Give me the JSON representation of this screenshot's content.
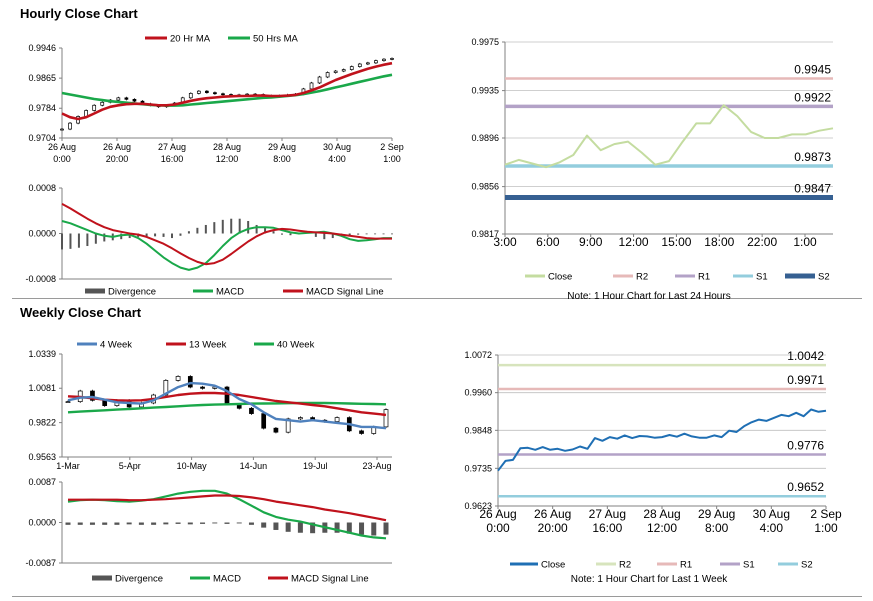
{
  "sections": {
    "hourly_title": "Hourly Close Chart",
    "weekly_title": "Weekly Close Chart"
  },
  "colors": {
    "ma_short": "#c0121c",
    "ma_long": "#1aa84a",
    "week4": "#4f81bd",
    "divergence": "#555555",
    "close_light": "#c4dca0",
    "close_blue": "#1f6fb4",
    "r2": "#e6b9b8",
    "r1": "#b3a2c7",
    "s1": "#93cddd",
    "s2": "#366092",
    "r2_weekly": "#d7e4bd"
  },
  "chart_data": [
    {
      "id": "hourly-price",
      "type": "candlestick",
      "legend": [
        "20 Hr MA",
        "50 Hrs MA"
      ],
      "y_ticks": [
        "0.9946",
        "0.9865",
        "0.9784",
        "0.9704"
      ],
      "ylim": [
        0.9704,
        0.9946
      ],
      "x_labels": [
        "26 Aug\n0:00",
        "26 Aug\n20:00",
        "27 Aug\n16:00",
        "28 Aug\n12:00",
        "29 Aug\n8:00",
        "30 Aug\n4:00",
        "2 Sep\n1:00"
      ],
      "close": [
        0.9728,
        0.9744,
        0.9762,
        0.9778,
        0.9792,
        0.98,
        0.9806,
        0.9812,
        0.9808,
        0.9803,
        0.9796,
        0.9792,
        0.9788,
        0.9792,
        0.9798,
        0.9812,
        0.9824,
        0.983,
        0.9826,
        0.9823,
        0.9821,
        0.9819,
        0.982,
        0.9822,
        0.9821,
        0.9818,
        0.9816,
        0.9818,
        0.982,
        0.9822,
        0.9836,
        0.9852,
        0.9868,
        0.988,
        0.9884,
        0.9888,
        0.9896,
        0.9903,
        0.9906,
        0.9912,
        0.9916,
        0.9918
      ],
      "ma20": [
        0.977,
        0.976,
        0.9755,
        0.976,
        0.977,
        0.978,
        0.9788,
        0.9792,
        0.9795,
        0.9796,
        0.9796,
        0.9794,
        0.9792,
        0.9792,
        0.9794,
        0.9799,
        0.9804,
        0.9808,
        0.9811,
        0.9813,
        0.9815,
        0.9816,
        0.9817,
        0.9817,
        0.9818,
        0.9818,
        0.9817,
        0.9817,
        0.9818,
        0.982,
        0.9825,
        0.9832,
        0.984,
        0.985,
        0.986,
        0.9868,
        0.9876,
        0.9883,
        0.989,
        0.9896,
        0.9901,
        0.9905
      ],
      "ma50": [
        0.9825,
        0.9821,
        0.9817,
        0.9813,
        0.9809,
        0.9806,
        0.9803,
        0.9801,
        0.9799,
        0.9797,
        0.9795,
        0.9793,
        0.9792,
        0.9791,
        0.9791,
        0.9792,
        0.9794,
        0.9796,
        0.9798,
        0.98,
        0.9802,
        0.9804,
        0.9806,
        0.9808,
        0.981,
        0.9812,
        0.9813,
        0.9815,
        0.9817,
        0.9819,
        0.9822,
        0.9826,
        0.983,
        0.9835,
        0.984,
        0.9845,
        0.985,
        0.9855,
        0.986,
        0.9865,
        0.987,
        0.9874
      ]
    },
    {
      "id": "hourly-macd",
      "type": "macd",
      "legend": [
        "Divergence",
        "MACD",
        "MACD Signal Line"
      ],
      "y_ticks": [
        "0.0008",
        "0.0000",
        "-0.0008"
      ],
      "ylim": [
        -0.0008,
        0.0008
      ],
      "divergence": [
        -0.00028,
        -0.00027,
        -0.00025,
        -0.00022,
        -0.00018,
        -0.00014,
        -0.00012,
        -0.0001,
        -8e-05,
        -6e-05,
        -5e-05,
        -5e-05,
        -6e-05,
        -8e-05,
        -4e-05,
        4e-05,
        0.0001,
        0.00015,
        0.0002,
        0.00024,
        0.00026,
        0.00026,
        0.00022,
        0.00015,
        0.0001,
        4e-05,
        -2e-05,
        -3e-05,
        -1e-05,
        3e-05,
        -6e-05,
        -0.0001,
        -8e-05,
        -5e-05,
        -3e-05,
        -2e-05,
        -1e-05,
        -1e-05,
        0.0,
        0.0
      ],
      "macd": [
        0.00022,
        0.00018,
        0.00012,
        6e-05,
        0.0,
        -4e-05,
        -6e-05,
        -3e-05,
        -2e-05,
        -8e-05,
        -0.00018,
        -0.0003,
        -0.00042,
        -0.00052,
        -0.0006,
        -0.00064,
        -0.0006,
        -0.00052,
        -0.00038,
        -0.00022,
        -8e-05,
        2e-05,
        8e-05,
        0.00011,
        0.00011,
        0.0001,
        6e-05,
        2e-05,
        0.0,
        1e-05,
        2e-05,
        3e-05,
        0.0,
        -4e-05,
        -0.0001,
        -0.00013,
        -0.00012,
        -0.0001,
        -8e-05,
        -8e-05
      ],
      "signal": [
        0.00052,
        0.00044,
        0.00035,
        0.00026,
        0.00018,
        0.00011,
        6e-05,
        3e-05,
        0.0,
        -2e-05,
        -6e-05,
        -0.00012,
        -0.00018,
        -0.00026,
        -0.00035,
        -0.00043,
        -0.0005,
        -0.00054,
        -0.00052,
        -0.00046,
        -0.00036,
        -0.00025,
        -0.00014,
        -5e-05,
        2e-05,
        6e-05,
        8e-05,
        7e-05,
        5e-05,
        3e-05,
        2e-05,
        1e-05,
        0.0,
        -2e-05,
        -4e-05,
        -6e-05,
        -8e-05,
        -9e-05,
        -9e-05,
        -9e-05
      ]
    },
    {
      "id": "hourly-levels",
      "type": "line",
      "legend": [
        "Close",
        "R2",
        "R1",
        "S1",
        "S2"
      ],
      "y_ticks": [
        "0.9975",
        "0.9935",
        "0.9896",
        "0.9856",
        "0.9817"
      ],
      "ylim": [
        0.9817,
        0.9975
      ],
      "x_labels": [
        "3:00",
        "6:00",
        "9:00",
        "12:00",
        "15:00",
        "18:00",
        "22:00",
        "1:00"
      ],
      "close": [
        0.9874,
        0.9878,
        0.9875,
        0.9872,
        0.9876,
        0.9882,
        0.9898,
        0.9886,
        0.9891,
        0.9893,
        0.9884,
        0.9874,
        0.9877,
        0.9893,
        0.9908,
        0.9908,
        0.9923,
        0.9914,
        0.9901,
        0.9896,
        0.9896,
        0.9899,
        0.9899,
        0.9902,
        0.9904
      ],
      "levels": {
        "R2": "0.9945",
        "R1": "0.9922",
        "S1": "0.9873",
        "S2": "0.9847"
      },
      "note": "Note: 1 Hour Chart for Last 24 Hours"
    },
    {
      "id": "weekly-price",
      "type": "candlestick",
      "legend": [
        "4 Week",
        "13 Week",
        "40 Week"
      ],
      "y_ticks": [
        "1.0339",
        "1.0081",
        "0.9822",
        "0.9563"
      ],
      "ylim": [
        0.9563,
        1.0339
      ],
      "x_labels": [
        "1-Mar",
        "5-Apr",
        "10-May",
        "14-Jun",
        "19-Jul",
        "23-Aug"
      ],
      "close": [
        0.998,
        1.006,
        0.999,
        0.995,
        0.999,
        0.994,
        0.997,
        1.003,
        1.014,
        1.017,
        1.009,
        1.008,
        1.009,
        0.996,
        0.993,
        0.989,
        0.978,
        0.975,
        0.985,
        0.986,
        0.984,
        0.983,
        0.986,
        0.976,
        0.974,
        0.979,
        0.992
      ],
      "w4": [
        0.999,
        1.001,
        1.0015,
        0.9995,
        0.9975,
        0.997,
        0.9965,
        0.999,
        1.004,
        1.009,
        1.012,
        1.0115,
        1.01,
        1.006,
        1.0,
        0.996,
        0.99,
        0.985,
        0.984,
        0.983,
        0.984,
        0.983,
        0.982,
        0.981,
        0.979,
        0.979,
        0.978
      ],
      "w13": [
        1.002,
        1.0015,
        1.0005,
        0.9995,
        0.999,
        0.9988,
        0.999,
        1.0,
        1.0015,
        1.003,
        1.004,
        1.0045,
        1.0045,
        1.004,
        1.003,
        1.0015,
        1.0,
        0.9985,
        0.9975,
        0.9965,
        0.9955,
        0.9945,
        0.993,
        0.9915,
        0.99,
        0.989,
        0.988
      ],
      "w40": [
        0.99,
        0.9905,
        0.991,
        0.9915,
        0.992,
        0.9925,
        0.993,
        0.9935,
        0.994,
        0.9945,
        0.995,
        0.9955,
        0.9958,
        0.996,
        0.9962,
        0.9965,
        0.9966,
        0.9967,
        0.9968,
        0.997,
        0.997,
        0.997,
        0.9968,
        0.9966,
        0.9964,
        0.9962,
        0.996
      ]
    },
    {
      "id": "weekly-macd",
      "type": "macd",
      "legend": [
        "Divergence",
        "MACD",
        "MACD Signal Line"
      ],
      "y_ticks": [
        "0.0087",
        "0.0000",
        "-0.0087"
      ],
      "ylim": [
        -0.0087,
        0.0087
      ],
      "divergence": [
        -0.0005,
        -0.0005,
        -0.0005,
        -0.0005,
        -0.0005,
        -0.0004,
        -0.0005,
        -0.0005,
        -0.0004,
        -0.0003,
        -0.0004,
        -0.0003,
        -0.0002,
        -0.0003,
        -0.0002,
        -0.0005,
        -0.0011,
        -0.0016,
        -0.002,
        -0.0022,
        -0.0023,
        -0.0022,
        -0.0022,
        -0.0024,
        -0.0026,
        -0.0028,
        -0.0026
      ],
      "macd": [
        0.0045,
        0.0048,
        0.0049,
        0.0048,
        0.0046,
        0.0045,
        0.0047,
        0.005,
        0.0056,
        0.0062,
        0.0066,
        0.0068,
        0.0068,
        0.0062,
        0.005,
        0.0036,
        0.0022,
        0.0012,
        0.0006,
        0.0002,
        -0.0004,
        -0.001,
        -0.0016,
        -0.0022,
        -0.0028,
        -0.0032,
        -0.0034
      ],
      "signal": [
        0.0049,
        0.0049,
        0.0049,
        0.0049,
        0.0049,
        0.0048,
        0.0048,
        0.0049,
        0.005,
        0.0052,
        0.0054,
        0.0056,
        0.0058,
        0.0058,
        0.0057,
        0.0054,
        0.005,
        0.0045,
        0.0041,
        0.0037,
        0.0033,
        0.0028,
        0.0024,
        0.002,
        0.0015,
        0.001,
        0.0005
      ]
    },
    {
      "id": "weekly-levels",
      "type": "line",
      "legend": [
        "Close",
        "R2",
        "R1",
        "S1",
        "S2"
      ],
      "y_ticks": [
        "1.0072",
        "0.9960",
        "0.9848",
        "0.9735",
        "0.9623"
      ],
      "ylim": [
        0.9623,
        1.0072
      ],
      "x_labels": [
        "26 Aug\n0:00",
        "26 Aug\n20:00",
        "27 Aug\n16:00",
        "28 Aug\n12:00",
        "29 Aug\n8:00",
        "30 Aug\n4:00",
        "2 Sep\n1:00"
      ],
      "close": [
        0.9728,
        0.9757,
        0.976,
        0.9795,
        0.9796,
        0.979,
        0.9798,
        0.979,
        0.9793,
        0.9787,
        0.9791,
        0.98,
        0.9793,
        0.9825,
        0.9817,
        0.9828,
        0.9823,
        0.9833,
        0.9825,
        0.9831,
        0.983,
        0.9826,
        0.9828,
        0.9834,
        0.9829,
        0.9838,
        0.983,
        0.9826,
        0.9826,
        0.9833,
        0.9828,
        0.9847,
        0.9843,
        0.986,
        0.9872,
        0.988,
        0.9876,
        0.9885,
        0.9894,
        0.989,
        0.99,
        0.989,
        0.991,
        0.9903,
        0.9906
      ],
      "levels": {
        "R2": "1.0042",
        "R1": "0.9971",
        "S1": "0.9776",
        "S2": "0.9652"
      },
      "note": "Note: 1 Hour Chart for Last 1 Week"
    }
  ]
}
